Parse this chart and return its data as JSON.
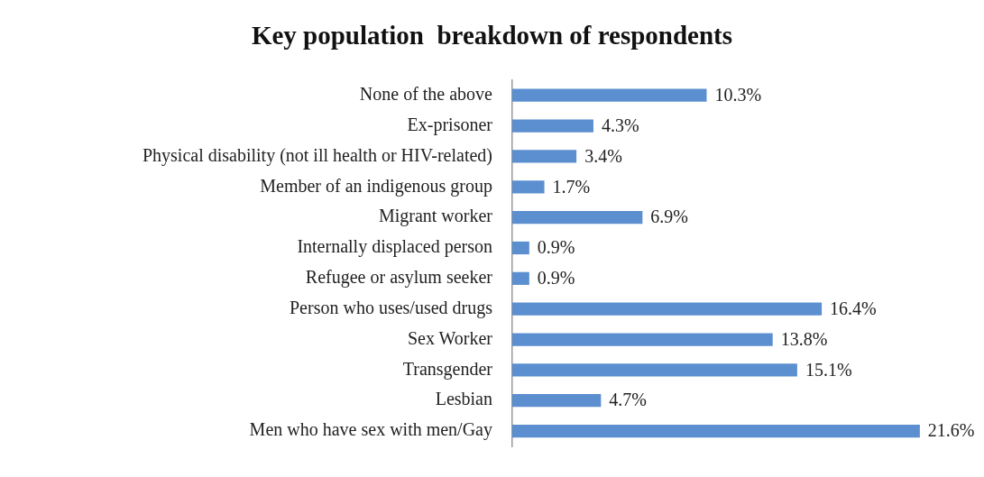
{
  "chart_data": {
    "type": "bar",
    "orientation": "horizontal",
    "title": "Key population  breakdown of respondents",
    "categories": [
      "None of the above",
      "Ex-prisoner",
      "Physical disability (not ill health or HIV-related)",
      "Member of an indigenous group",
      "Migrant worker",
      "Internally displaced person",
      "Refugee or asylum seeker",
      "Person who uses/used drugs",
      "Sex Worker",
      "Transgender",
      "Lesbian",
      "Men who have sex with men/Gay"
    ],
    "values": [
      10.3,
      4.3,
      3.4,
      1.7,
      6.9,
      0.9,
      0.9,
      16.4,
      13.8,
      15.1,
      4.7,
      21.6
    ],
    "value_labels": [
      "10.3%",
      "4.3%",
      "3.4%",
      "1.7%",
      "6.9%",
      "0.9%",
      "0.9%",
      "16.4%",
      "13.8%",
      "15.1%",
      "4.7%",
      "21.6%"
    ],
    "color": "#5b8fd0",
    "tick_labels": "y",
    "legend": false
  }
}
